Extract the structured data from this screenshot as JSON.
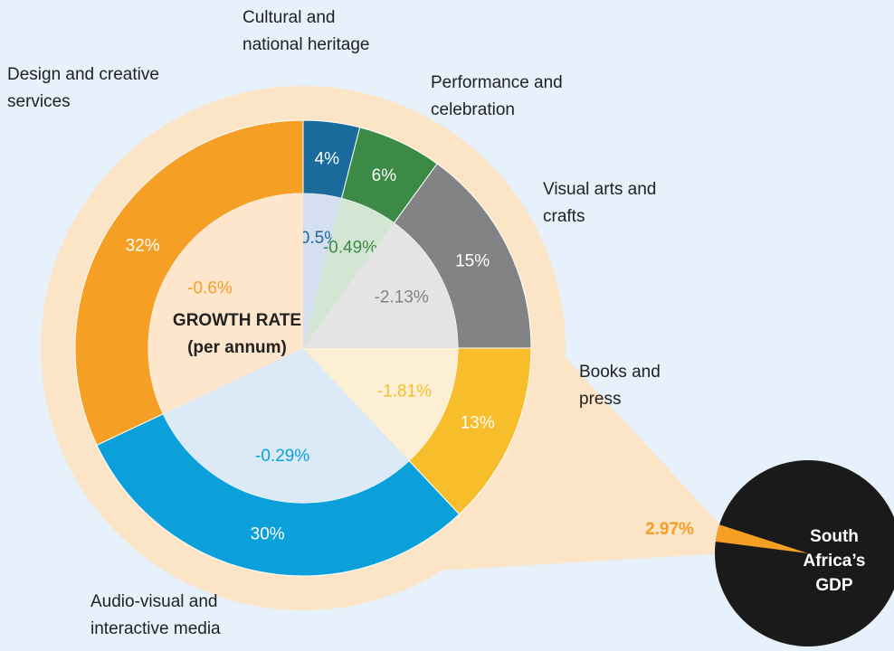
{
  "chart_data": {
    "type": "donut",
    "categories": [
      "Cultural and national heritage",
      "Performance and celebration",
      "Visual arts and crafts",
      "Books and press",
      "Audio-visual and interactive media",
      "Design and creative services"
    ],
    "values": [
      4,
      6,
      15,
      13,
      30,
      32
    ],
    "value_labels": [
      "4%",
      "6%",
      "15%",
      "13%",
      "30%",
      "32%"
    ],
    "colors": [
      "#1b6a9c",
      "#3b8a45",
      "#828385",
      "#f7bd2b",
      "#0ca0da",
      "#f59f25"
    ],
    "tint_colors": [
      "#d6dff0",
      "#d3e6d3",
      "#e4e4e4",
      "#fdefd3",
      "#dbeaf6",
      "#fde6cb"
    ],
    "growth_rates": [
      -0.5,
      -0.49,
      -2.13,
      -1.81,
      -0.29,
      -0.6
    ],
    "growth_rate_labels": [
      "-0.5%",
      "-0.49%",
      "-2.13%",
      "-1.81%",
      "-0.29%",
      "-0.6%"
    ],
    "center_label": [
      "GROWTH RATE",
      "(per annum)"
    ],
    "gdp": {
      "label": [
        "South",
        "Africa’s",
        "GDP"
      ],
      "value": 2.97,
      "value_label": "2.97%",
      "color": "#f59f25"
    }
  }
}
